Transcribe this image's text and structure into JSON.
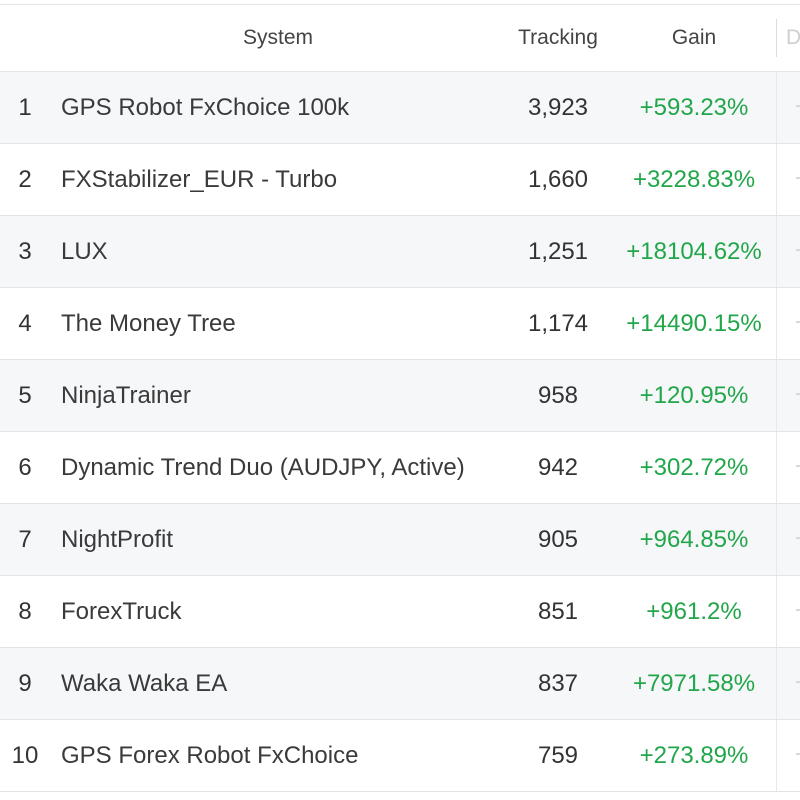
{
  "table": {
    "headers": {
      "system": "System",
      "tracking": "Tracking",
      "gain": "Gain",
      "more": "D"
    },
    "rows": [
      {
        "rank": "1",
        "system": "GPS Robot FxChoice 100k",
        "tracking": "3,923",
        "gain": "+593.23%"
      },
      {
        "rank": "2",
        "system": "FXStabilizer_EUR - Turbo",
        "tracking": "1,660",
        "gain": "+3228.83%"
      },
      {
        "rank": "3",
        "system": "LUX",
        "tracking": "1,251",
        "gain": "+18104.62%"
      },
      {
        "rank": "4",
        "system": "The Money Tree",
        "tracking": "1,174",
        "gain": "+14490.15%"
      },
      {
        "rank": "5",
        "system": "NinjaTrainer",
        "tracking": "958",
        "gain": "+120.95%"
      },
      {
        "rank": "6",
        "system": "Dynamic Trend Duo (AUDJPY, Active)",
        "tracking": "942",
        "gain": "+302.72%"
      },
      {
        "rank": "7",
        "system": "NightProfit",
        "tracking": "905",
        "gain": "+964.85%"
      },
      {
        "rank": "8",
        "system": "ForexTruck",
        "tracking": "851",
        "gain": "+961.2%"
      },
      {
        "rank": "9",
        "system": "Waka Waka EA",
        "tracking": "837",
        "gain": "+7971.58%"
      },
      {
        "rank": "10",
        "system": "GPS Forex Robot FxChoice",
        "tracking": "759",
        "gain": "+273.89%"
      }
    ]
  },
  "colors": {
    "gain_positive": "#22a64a",
    "row_alt_bg": "#f6f7f9",
    "border": "#e4e4e4"
  }
}
